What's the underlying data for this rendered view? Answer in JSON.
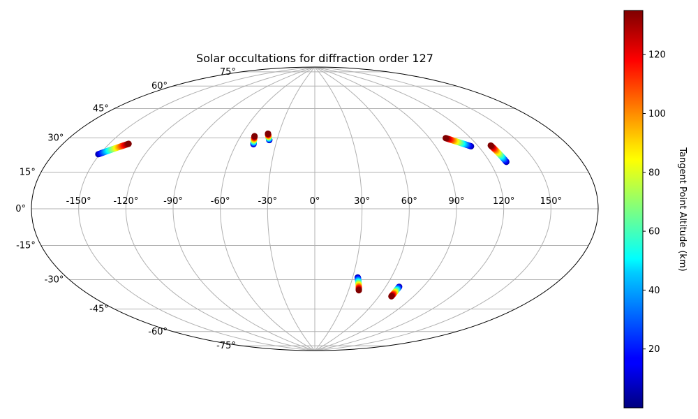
{
  "chart_data": {
    "type": "scatter",
    "projection": "aitoff",
    "title": "Solar occultations for diffraction order 127",
    "lon_ticks": [
      -150,
      -120,
      -90,
      -60,
      -30,
      0,
      30,
      60,
      90,
      120,
      150
    ],
    "lat_ticks": [
      -75,
      -60,
      -45,
      -30,
      -15,
      0,
      15,
      30,
      45,
      60,
      75
    ],
    "grid": true,
    "colormap": "jet",
    "colorbar": {
      "label": "Tangent Point Altitude (km)",
      "range": [
        0,
        135
      ],
      "ticks": [
        20,
        40,
        60,
        80,
        100,
        120
      ]
    },
    "tracks": [
      {
        "start": {
          "lon": -151,
          "lat": 26,
          "alt": 5
        },
        "end": {
          "lon": -137,
          "lat": 33,
          "alt": 135
        }
      },
      {
        "start": {
          "lon": -47,
          "lat": 40,
          "alt": 5
        },
        "end": {
          "lon": -49,
          "lat": 45,
          "alt": 135
        }
      },
      {
        "start": {
          "lon": -36,
          "lat": 43,
          "alt": 5
        },
        "end": {
          "lon": -39,
          "lat": 47,
          "alt": 135
        }
      },
      {
        "start": {
          "lon": 115,
          "lat": 34,
          "alt": 5
        },
        "end": {
          "lon": 102,
          "lat": 40,
          "alt": 135
        }
      },
      {
        "start": {
          "lon": 131,
          "lat": 24,
          "alt": 5
        },
        "end": {
          "lon": 129,
          "lat": 33,
          "alt": 135
        }
      },
      {
        "start": {
          "lon": 34,
          "lat": -43,
          "alt": 5
        },
        "end": {
          "lon": 39,
          "lat": -51,
          "alt": 135
        }
      },
      {
        "start": {
          "lon": 71,
          "lat": -47,
          "alt": 5
        },
        "end": {
          "lon": 71,
          "lat": -53,
          "alt": 135
        }
      }
    ]
  }
}
